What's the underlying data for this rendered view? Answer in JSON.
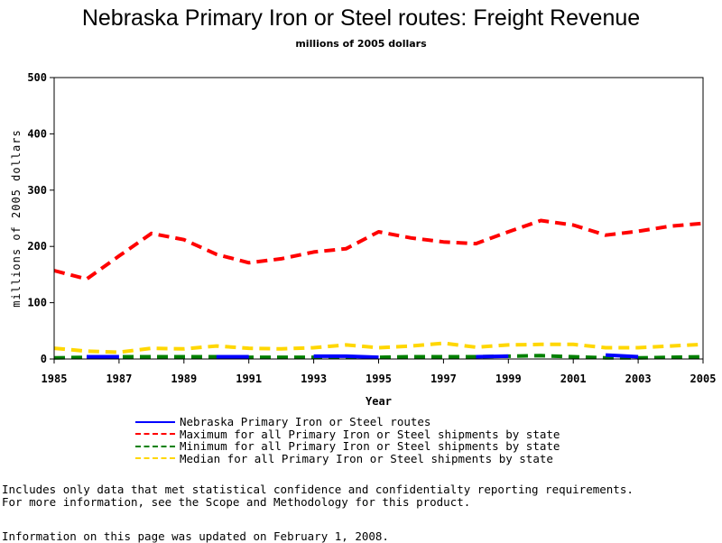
{
  "page": {
    "title": "Nebraska Primary Iron or Steel routes: Freight Revenue",
    "subtitle": "millions of 2005 dollars",
    "notes": [
      "Includes only data that met statistical confidence and confidentialty reporting requirements.",
      "For more information, see the Scope and Methodology for this product."
    ],
    "updated": "Information on this page was updated on February 1, 2008."
  },
  "chart_data": {
    "type": "line",
    "title": "Nebraska Primary Iron or Steel routes: Freight Revenue",
    "subtitle": "millions of 2005 dollars",
    "xlabel": "Year",
    "ylabel": "millions of 2005 dollars",
    "xlim": [
      1985,
      2005
    ],
    "ylim": [
      0,
      500
    ],
    "xticks": [
      1985,
      1987,
      1989,
      1991,
      1993,
      1995,
      1997,
      1999,
      2001,
      2003,
      2005
    ],
    "yticks": [
      0,
      100,
      200,
      300,
      400,
      500
    ],
    "grid": false,
    "legend_position": "bottom",
    "series": [
      {
        "name": "Nebraska Primary Iron or Steel routes",
        "color": "#0000ff",
        "style": "solid",
        "segments": [
          {
            "x": [
              1986,
              1987
            ],
            "y": [
              4,
              4
            ]
          },
          {
            "x": [
              1990,
              1991
            ],
            "y": [
              4,
              4
            ]
          },
          {
            "x": [
              1993,
              1994,
              1995
            ],
            "y": [
              5,
              5,
              3
            ]
          },
          {
            "x": [
              1998,
              1999
            ],
            "y": [
              4,
              5
            ]
          },
          {
            "x": [
              2002,
              2003
            ],
            "y": [
              7,
              4
            ]
          }
        ]
      },
      {
        "name": "Maximum for all Primary Iron or Steel shipments by state",
        "color": "#ff0000",
        "style": "dashed",
        "x": [
          1985,
          1986,
          1987,
          1988,
          1989,
          1990,
          1991,
          1992,
          1993,
          1994,
          1995,
          1996,
          1997,
          1998,
          1999,
          2000,
          2001,
          2002,
          2003,
          2004,
          2005
        ],
        "y": [
          157,
          142,
          183,
          223,
          212,
          186,
          171,
          178,
          190,
          196,
          226,
          215,
          208,
          205,
          226,
          246,
          238,
          220,
          227,
          236,
          241
        ]
      },
      {
        "name": "Minimum for all Primary Iron or Steel shipments by state",
        "color": "#008000",
        "style": "dashed",
        "x": [
          1985,
          1986,
          1987,
          1988,
          1989,
          1990,
          1991,
          1992,
          1993,
          1994,
          1995,
          1996,
          1997,
          1998,
          1999,
          2000,
          2001,
          2002,
          2003,
          2004,
          2005
        ],
        "y": [
          2,
          3,
          4,
          4,
          4,
          4,
          3,
          3,
          3,
          3,
          3,
          4,
          4,
          4,
          5,
          6,
          4,
          2,
          2,
          3,
          4
        ]
      },
      {
        "name": "Median for all Primary Iron or Steel shipments by state",
        "color": "#ffd700",
        "style": "dashed",
        "x": [
          1985,
          1986,
          1987,
          1988,
          1989,
          1990,
          1991,
          1992,
          1993,
          1994,
          1995,
          1996,
          1997,
          1998,
          1999,
          2000,
          2001,
          2002,
          2003,
          2004,
          2005
        ],
        "y": [
          19,
          14,
          12,
          19,
          18,
          23,
          19,
          18,
          20,
          25,
          20,
          23,
          28,
          21,
          25,
          26,
          26,
          20,
          20,
          23,
          26
        ]
      }
    ]
  }
}
